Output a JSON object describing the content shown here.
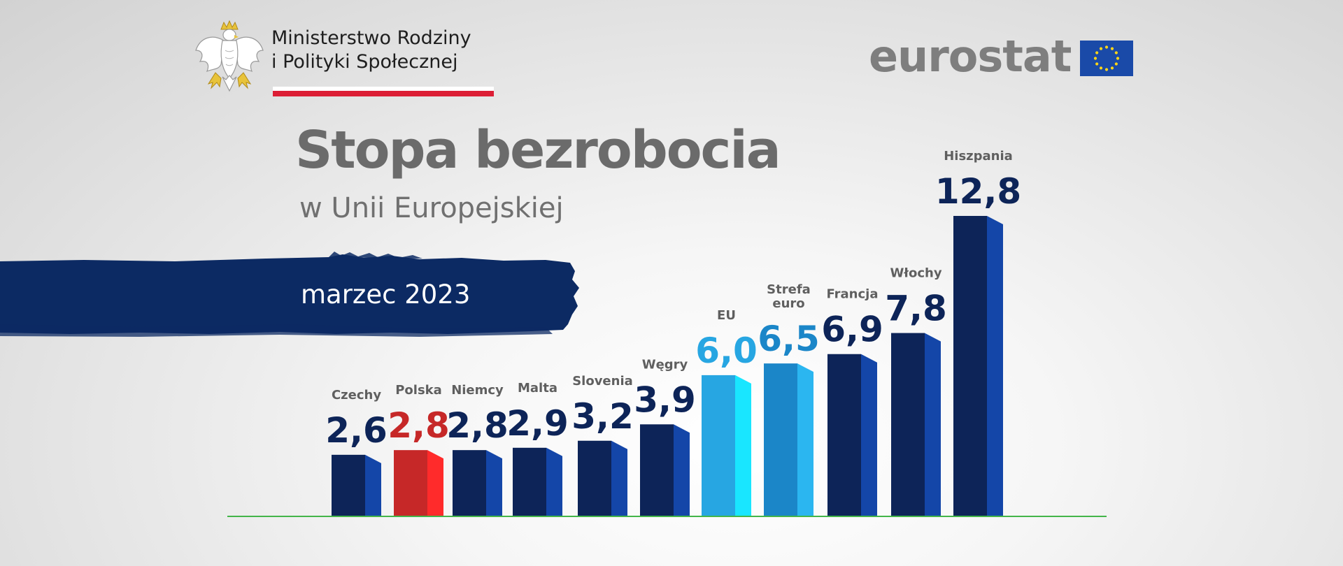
{
  "ministry": {
    "name_line1": "Ministerstwo Rodziny",
    "name_line2": "i Polityki Społecznej",
    "emblem_icon": "white-eagle-emblem-icon"
  },
  "eurostat": {
    "wordmark": "eurostat",
    "flag_icon": "eu-flag-icon"
  },
  "header": {
    "title": "Stopa bezrobocia",
    "subtitle": "w Unii Europejskiej"
  },
  "banner": {
    "period": "marzec 2023"
  },
  "colors": {
    "navy": "#0d2458",
    "navy_side": "#1446a8",
    "highlight_red": "#c62828",
    "highlight_red_side": "#ff2b2b",
    "eu_light": "#27a6e2",
    "eu_light_side": "#19e6ff",
    "euro_mid": "#1b86c8",
    "euro_mid_side": "#2bb6f0",
    "baseline": "#43b549",
    "grey_text": "#5f5f5f"
  },
  "chart_data": {
    "type": "bar",
    "title": "Stopa bezrobocia",
    "subtitle": "w Unii Europejskiej",
    "period": "marzec 2023",
    "unit": "%",
    "xlabel": "",
    "ylabel": "",
    "ylim": [
      0,
      12.8
    ],
    "grid": false,
    "legend": "none",
    "categories": [
      "Czechy",
      "Polska",
      "Niemcy",
      "Malta",
      "Slovenia",
      "Węgry",
      "EU",
      "Strefa euro",
      "Francja",
      "Włochy",
      "Hiszpania"
    ],
    "values": [
      2.6,
      2.8,
      2.8,
      2.9,
      3.2,
      3.9,
      6.0,
      6.5,
      6.9,
      7.8,
      12.8
    ],
    "value_labels": [
      "2,6",
      "2,8",
      "2,8",
      "2,9",
      "3,2",
      "3,9",
      "6,0",
      "6,5",
      "6,9",
      "7,8",
      "12,8"
    ],
    "category_labels": [
      "Czechy",
      "Polska",
      "Niemcy",
      "Malta",
      "Slovenia",
      "Węgry",
      "EU",
      "Strefa",
      "Francja",
      "Włochy",
      "Hiszpania"
    ],
    "category_labels_line2": [
      "",
      "",
      "",
      "",
      "",
      "",
      "",
      "euro",
      "",
      "",
      ""
    ],
    "bar_styles": [
      "navy",
      "red",
      "navy",
      "navy",
      "navy",
      "navy",
      "eu",
      "euro",
      "navy",
      "navy",
      "navy"
    ]
  }
}
